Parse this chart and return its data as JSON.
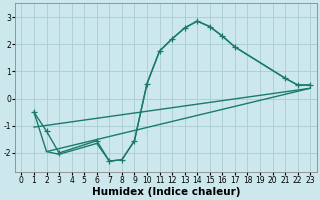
{
  "xlabel": "Humidex (Indice chaleur)",
  "bg_color": "#cce8ec",
  "grid_color": "#aaccd4",
  "line_color": "#1a7a6e",
  "marker": "+",
  "markersize": 4,
  "linewidth": 1.0,
  "xlim": [
    -0.5,
    23.5
  ],
  "ylim": [
    -2.7,
    3.5
  ],
  "yticks": [
    -2,
    -1,
    0,
    1,
    2,
    3
  ],
  "xticks": [
    0,
    1,
    2,
    3,
    4,
    5,
    6,
    7,
    8,
    9,
    10,
    11,
    12,
    13,
    14,
    15,
    16,
    17,
    18,
    19,
    20,
    21,
    22,
    23
  ],
  "line1_x": [
    1,
    2,
    3,
    6,
    7,
    8,
    9,
    10,
    11,
    12,
    13,
    14,
    15,
    16,
    17,
    21,
    22,
    23
  ],
  "line1_y": [
    -0.5,
    -1.2,
    -2.0,
    -1.55,
    -2.3,
    -2.25,
    -1.55,
    0.55,
    1.75,
    2.2,
    2.6,
    2.85,
    2.65,
    2.3,
    1.9,
    0.75,
    0.5,
    0.5
  ],
  "line2_x": [
    1,
    2,
    3,
    6,
    7,
    8,
    9,
    10,
    11,
    12,
    13,
    14,
    15,
    16,
    17,
    21,
    22,
    23
  ],
  "line2_y": [
    -0.5,
    -1.95,
    -2.05,
    -1.65,
    -2.3,
    -2.25,
    -1.55,
    0.55,
    1.75,
    2.2,
    2.6,
    2.85,
    2.65,
    2.3,
    1.9,
    0.75,
    0.5,
    0.5
  ],
  "line3_x": [
    1,
    23
  ],
  "line3_y": [
    -1.05,
    0.38
  ],
  "line4_x": [
    2,
    23
  ],
  "line4_y": [
    -1.95,
    0.38
  ],
  "tick_fontsize": 5.5,
  "xlabel_fontsize": 7.5
}
